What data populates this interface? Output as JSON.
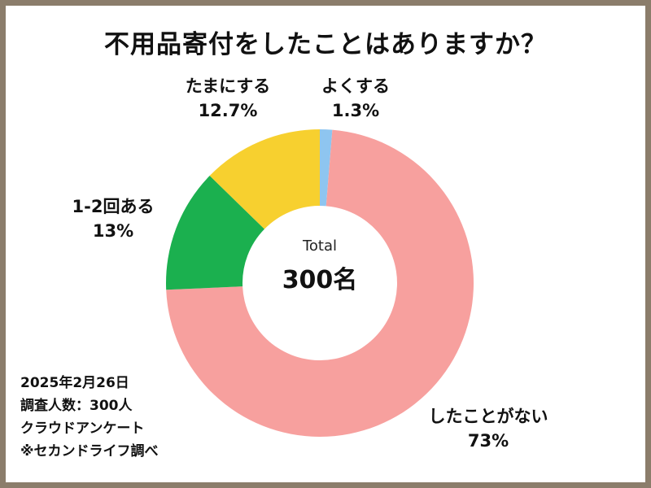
{
  "chart_data": {
    "type": "pie",
    "title": "不用品寄付をしたことはありますか？",
    "center_label": "Total",
    "center_value": "300名",
    "slices": [
      {
        "label": "よくする",
        "value": 1.3,
        "display": "1.3%",
        "color": "#8ec5f0"
      },
      {
        "label": "したことがない",
        "value": 73,
        "display": "73%",
        "color": "#f7a09e"
      },
      {
        "label": "1-2回ある",
        "value": 13,
        "display": "13%",
        "color": "#1bb04f"
      },
      {
        "label": "たまにする",
        "value": 12.7,
        "display": "12.7%",
        "color": "#f7d02f"
      }
    ]
  },
  "notes": [
    "2025年2月26日",
    "調査人数：300人",
    "クラウドアンケート",
    "※セカンドライフ調べ"
  ]
}
